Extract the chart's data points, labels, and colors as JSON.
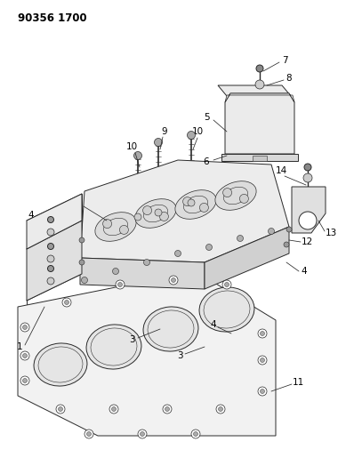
{
  "title": "90356 1700",
  "background_color": "#ffffff",
  "line_color": "#2a2a2a",
  "fig_width": 3.98,
  "fig_height": 5.33,
  "dpi": 100
}
